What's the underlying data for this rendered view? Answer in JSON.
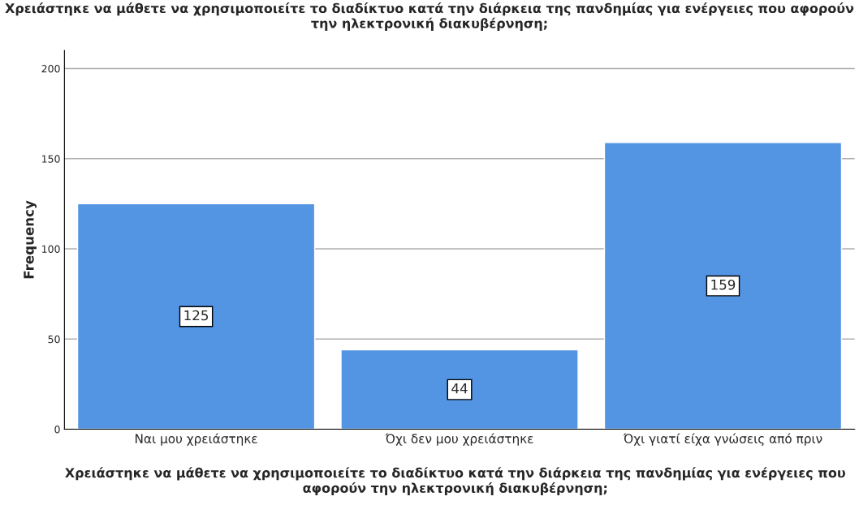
{
  "chart_data": {
    "type": "bar",
    "title": "Χρειάστηκε να μάθετε να χρησιμοποιείτε το διαδίκτυο κατά την διάρκεια της πανδημίας για ενέργειες που αφορούν την ηλεκτρονική διακυβέρνηση;",
    "xlabel": "Χρειάστηκε να μάθετε να χρησιμοποιείτε το διαδίκτυο κατά την διάρκεια της πανδημίας για ενέργειες που αφορούν την ηλεκτρονική διακυβέρνηση;",
    "ylabel": "Frequency",
    "categories": [
      "Ναι μου χρειάστηκε",
      "Όχι δεν μου χρειάστηκε",
      "Όχι γιατί είχα γνώσεις από πριν"
    ],
    "values": [
      125,
      44,
      159
    ],
    "color": "#5394e3",
    "ylim": [
      0,
      210
    ],
    "yticks": [
      0,
      50,
      100,
      150,
      200
    ],
    "grid": "y",
    "data_labels": true
  }
}
